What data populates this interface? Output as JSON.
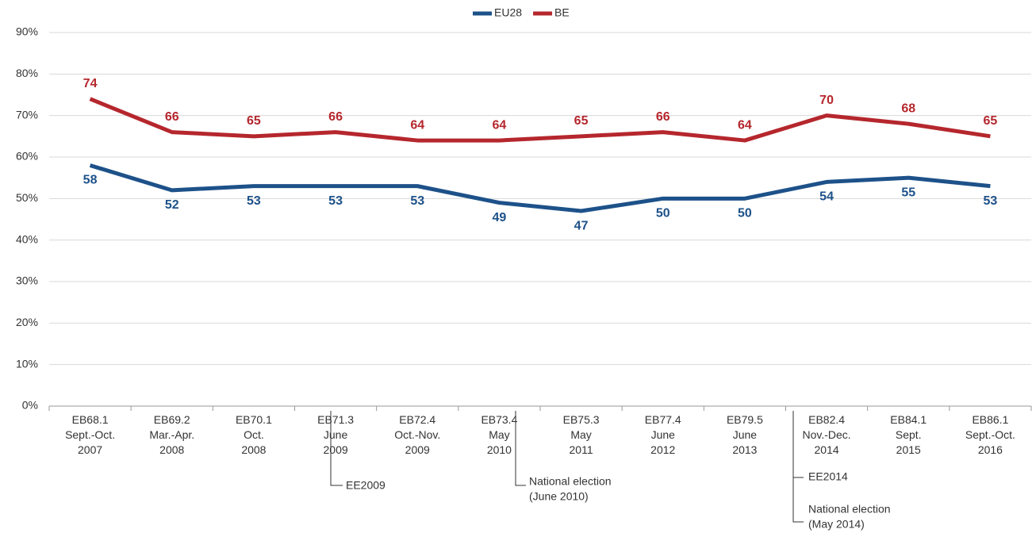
{
  "chart_data": {
    "type": "line",
    "categories": [
      [
        "EB68.1",
        "Sept.-Oct.",
        "2007"
      ],
      [
        "EB69.2",
        "Mar.-Apr.",
        "2008"
      ],
      [
        "EB70.1",
        "Oct.",
        "2008"
      ],
      [
        "EB71.3",
        "June",
        "2009"
      ],
      [
        "EB72.4",
        "Oct.-Nov.",
        "2009"
      ],
      [
        "EB73.4",
        "May",
        "2010"
      ],
      [
        "EB75.3",
        "May",
        "2011"
      ],
      [
        "EB77.4",
        "June",
        "2012"
      ],
      [
        "EB79.5",
        "June",
        "2013"
      ],
      [
        "EB82.4",
        "Nov.-Dec.",
        "2014"
      ],
      [
        "EB84.1",
        "Sept.",
        "2015"
      ],
      [
        "EB86.1",
        "Sept.-Oct.",
        "2016"
      ]
    ],
    "series": [
      {
        "name": "EU28",
        "color": "#1d5189",
        "values": [
          58,
          52,
          53,
          53,
          53,
          49,
          47,
          50,
          50,
          54,
          55,
          53
        ]
      },
      {
        "name": "BE",
        "color": "#b5272d",
        "values": [
          74,
          66,
          65,
          66,
          64,
          64,
          65,
          66,
          64,
          70,
          68,
          65
        ]
      }
    ],
    "ylim": [
      0,
      90
    ],
    "yticks": [
      {
        "value": 0,
        "label": "0%"
      },
      {
        "value": 10,
        "label": "10%"
      },
      {
        "value": 20,
        "label": "20%"
      },
      {
        "value": 30,
        "label": "30%"
      },
      {
        "value": 40,
        "label": "40%"
      },
      {
        "value": 50,
        "label": "50%"
      },
      {
        "value": 60,
        "label": "60%"
      },
      {
        "value": 70,
        "label": "70%"
      },
      {
        "value": 80,
        "label": "80%"
      },
      {
        "value": 90,
        "label": "90%"
      }
    ],
    "grid": true,
    "legend": "top",
    "annotations": [
      [
        "EE2009"
      ],
      [
        "National election",
        "(June 2010)"
      ],
      [
        "EE2014"
      ],
      [
        "National election",
        "(May 2014)"
      ]
    ]
  }
}
